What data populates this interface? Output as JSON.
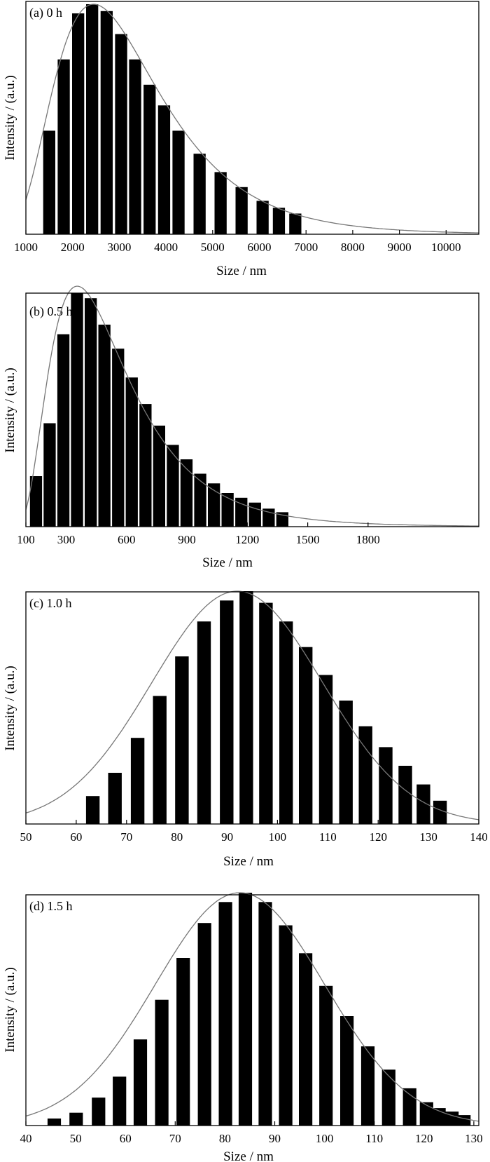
{
  "chart_data": [
    {
      "type": "bar",
      "panel_label": "(a) 0 h",
      "xlabel": "Size / nm",
      "ylabel": "Intensity / (a.u.)",
      "xlim": [
        1000,
        10700
      ],
      "ylim": [
        0,
        1.0
      ],
      "xticks": [
        1000,
        2000,
        3000,
        4000,
        5000,
        6000,
        7000,
        8000,
        9000,
        10000
      ],
      "bar_width": 260,
      "x": [
        1500,
        1810,
        2120,
        2420,
        2730,
        3040,
        3340,
        3650,
        3960,
        4270,
        4720,
        5170,
        5620,
        6070,
        6420,
        6770
      ],
      "values": [
        0.45,
        0.76,
        0.96,
        1.0,
        0.97,
        0.87,
        0.76,
        0.65,
        0.56,
        0.45,
        0.35,
        0.27,
        0.205,
        0.145,
        0.115,
        0.09
      ],
      "fit_curve": {
        "type": "lognormal",
        "peak_x": 2450,
        "sigma": 0.46
      },
      "grid": false,
      "legend": false
    },
    {
      "type": "bar",
      "panel_label": "(b) 0.5 h",
      "xlabel": "Size / nm",
      "ylabel": "Intensity / (a.u.)",
      "xlim": [
        100,
        2350
      ],
      "ylim": [
        0,
        1.0
      ],
      "xticks": [
        100,
        300,
        600,
        900,
        1200,
        1500,
        1800
      ],
      "bar_width": 60,
      "x": [
        150,
        218,
        286,
        354,
        422,
        490,
        558,
        626,
        694,
        762,
        830,
        898,
        966,
        1034,
        1102,
        1170,
        1238,
        1306,
        1374
      ],
      "values": [
        0.21,
        0.43,
        0.8,
        0.97,
        0.95,
        0.84,
        0.74,
        0.62,
        0.51,
        0.42,
        0.34,
        0.28,
        0.22,
        0.18,
        0.14,
        0.12,
        0.1,
        0.075,
        0.06
      ],
      "fit_curve": {
        "type": "lognormal",
        "peak_x": 355,
        "sigma": 0.55
      },
      "grid": false,
      "legend": false
    },
    {
      "type": "bar",
      "panel_label": "(c) 1.0 h",
      "xlabel": "Size / nm",
      "ylabel": "Intensity / (a.u.)",
      "xlim": [
        50,
        140
      ],
      "ylim": [
        0,
        1.0
      ],
      "xticks": [
        50,
        60,
        70,
        80,
        90,
        100,
        110,
        120,
        130,
        140
      ],
      "bar_width": 2.7,
      "x": [
        63.3,
        67.7,
        72.2,
        76.6,
        81.0,
        85.4,
        89.9,
        93.8,
        97.7,
        101.7,
        105.6,
        109.6,
        113.6,
        117.5,
        121.5,
        125.4,
        129.0,
        132.3
      ],
      "values": [
        0.12,
        0.22,
        0.37,
        0.55,
        0.72,
        0.87,
        0.96,
        1.0,
        0.95,
        0.87,
        0.76,
        0.64,
        0.53,
        0.42,
        0.33,
        0.25,
        0.17,
        0.1
      ],
      "fit_curve": {
        "type": "gaussian",
        "mean": 92,
        "sd": 17
      },
      "grid": false,
      "legend": false
    },
    {
      "type": "bar",
      "panel_label": "(d) 1.5 h",
      "xlabel": "Size / nm",
      "ylabel": "Intensity / (a.u.)",
      "xlim": [
        40,
        131
      ],
      "ylim": [
        0,
        1.0
      ],
      "xticks": [
        40,
        50,
        60,
        70,
        80,
        90,
        100,
        110,
        120,
        130
      ],
      "bar_width": 2.7,
      "x": [
        45.7,
        50.1,
        54.6,
        58.8,
        63.0,
        67.3,
        71.6,
        75.9,
        80.1,
        84.1,
        88.1,
        92.2,
        96.2,
        100.3,
        104.5,
        108.7,
        112.9,
        117.1,
        120.5,
        123.0,
        125.6,
        128.0
      ],
      "values": [
        0.03,
        0.055,
        0.12,
        0.21,
        0.37,
        0.54,
        0.72,
        0.87,
        0.96,
        1.0,
        0.96,
        0.86,
        0.74,
        0.6,
        0.47,
        0.34,
        0.24,
        0.16,
        0.1,
        0.075,
        0.06,
        0.045
      ],
      "fit_curve": {
        "type": "gaussian",
        "mean": 83,
        "sd": 17
      },
      "grid": false,
      "legend": false
    }
  ]
}
